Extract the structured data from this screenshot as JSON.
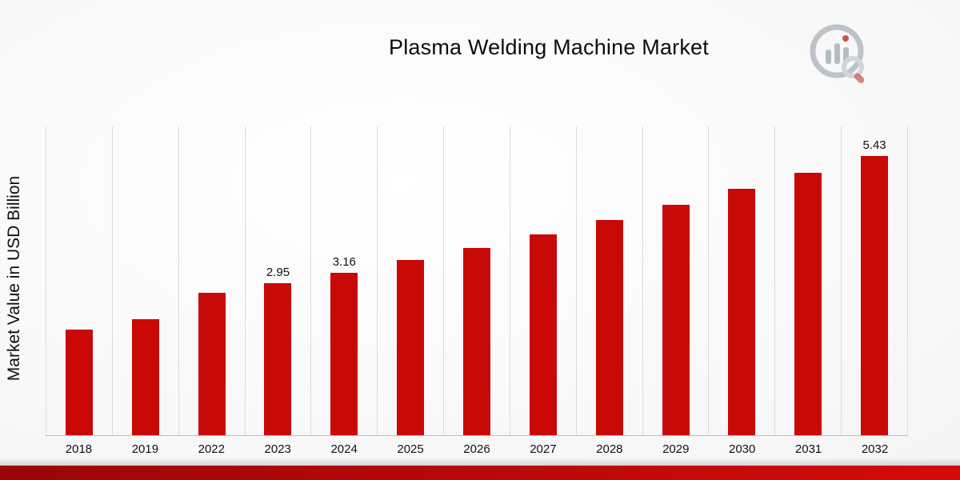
{
  "page": {
    "title": "Plasma Welding Machine Market",
    "ylabel": "Market Value in USD Billion"
  },
  "branding": {
    "logo_icon": "bar-chart-magnifier-logo"
  },
  "colors": {
    "bar": "#c90808",
    "accent_strip_dark": "#9b0606",
    "accent_strip_bright": "#d40b0b",
    "gridline": "#dadada",
    "logo_gray": "#b3bac0",
    "logo_red": "#c0392b"
  },
  "chart_data": {
    "type": "bar",
    "title": "Plasma Welding Machine Market",
    "xlabel": "",
    "ylabel": "Market Value in USD Billion",
    "categories": [
      "2018",
      "2019",
      "2022",
      "2023",
      "2024",
      "2025",
      "2026",
      "2027",
      "2028",
      "2029",
      "2030",
      "2031",
      "2032"
    ],
    "values": [
      2.05,
      2.25,
      2.76,
      2.95,
      3.16,
      3.4,
      3.64,
      3.9,
      4.18,
      4.47,
      4.79,
      5.1,
      5.43
    ],
    "data_labels": [
      null,
      null,
      null,
      "2.95",
      "3.16",
      null,
      null,
      null,
      null,
      null,
      null,
      null,
      "5.43"
    ],
    "ylim": [
      0,
      6
    ],
    "grid": "vertical",
    "legend": "none",
    "bar_color": "#c90808"
  }
}
